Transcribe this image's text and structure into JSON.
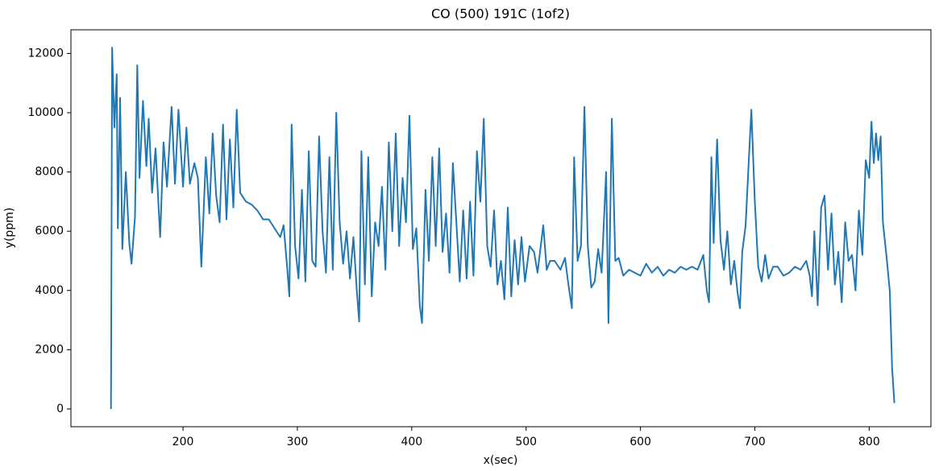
{
  "chart_data": {
    "type": "line",
    "title": "CO (500) 191C (1of2)",
    "xlabel": "x(sec)",
    "ylabel": "y(ppm)",
    "color": "#1f77b4",
    "xlim": [
      102,
      854
    ],
    "ylim": [
      -600,
      12800
    ],
    "xticks": [
      200,
      300,
      400,
      500,
      600,
      700,
      800
    ],
    "yticks": [
      0,
      2000,
      4000,
      6000,
      8000,
      10000,
      12000
    ],
    "grid": false,
    "x": [
      137,
      138,
      140,
      142,
      143,
      145,
      147,
      150,
      153,
      155,
      158,
      160,
      162,
      165,
      168,
      170,
      173,
      176,
      180,
      183,
      186,
      190,
      193,
      196,
      200,
      203,
      206,
      210,
      213,
      216,
      220,
      223,
      226,
      229,
      232,
      235,
      238,
      241,
      244,
      247,
      250,
      255,
      260,
      265,
      270,
      275,
      280,
      285,
      288,
      291,
      293,
      295,
      298,
      301,
      304,
      307,
      310,
      313,
      316,
      319,
      322,
      325,
      328,
      331,
      334,
      337,
      340,
      343,
      346,
      349,
      352,
      354,
      356,
      359,
      362,
      365,
      368,
      371,
      374,
      377,
      380,
      383,
      386,
      389,
      392,
      395,
      398,
      401,
      404,
      407,
      409,
      412,
      415,
      418,
      421,
      424,
      427,
      430,
      433,
      436,
      439,
      442,
      445,
      448,
      451,
      454,
      457,
      460,
      463,
      466,
      469,
      472,
      475,
      478,
      481,
      484,
      487,
      490,
      493,
      496,
      499,
      503,
      507,
      510,
      515,
      518,
      521,
      525,
      530,
      534,
      537,
      540,
      542,
      545,
      548,
      551,
      554,
      557,
      560,
      563,
      566,
      570,
      572,
      575,
      578,
      581,
      585,
      590,
      595,
      600,
      605,
      610,
      615,
      620,
      625,
      630,
      635,
      640,
      645,
      650,
      655,
      658,
      660,
      662,
      664,
      667,
      670,
      673,
      676,
      679,
      682,
      685,
      687,
      689,
      692,
      695,
      697,
      700,
      703,
      706,
      709,
      712,
      716,
      720,
      725,
      730,
      735,
      740,
      745,
      748,
      750,
      752,
      755,
      758,
      761,
      764,
      767,
      770,
      773,
      776,
      779,
      782,
      785,
      788,
      791,
      794,
      797,
      800,
      802,
      804,
      806,
      808,
      810,
      812,
      815,
      818,
      820,
      822
    ],
    "values": [
      0,
      12200,
      9500,
      11300,
      6100,
      10500,
      5400,
      8000,
      5600,
      4900,
      6500,
      11600,
      7800,
      10400,
      8200,
      9800,
      7300,
      8800,
      5800,
      9000,
      7500,
      10200,
      7600,
      10100,
      7500,
      9500,
      7600,
      8300,
      7800,
      4800,
      8500,
      6600,
      9300,
      7200,
      6300,
      9600,
      6400,
      9100,
      6800,
      10100,
      7300,
      7000,
      6900,
      6700,
      6400,
      6400,
      6100,
      5800,
      6200,
      4800,
      3800,
      9600,
      5500,
      4400,
      7400,
      4300,
      8700,
      5000,
      4800,
      9200,
      6000,
      4600,
      8500,
      4700,
      10000,
      6300,
      4900,
      6000,
      4400,
      5800,
      4000,
      2950,
      8700,
      4200,
      8500,
      3800,
      6300,
      5500,
      7500,
      4700,
      9000,
      6000,
      9300,
      5500,
      7800,
      6300,
      9900,
      5400,
      6100,
      3500,
      2900,
      7400,
      5000,
      8500,
      5500,
      8800,
      5300,
      6600,
      4600,
      8300,
      6300,
      4300,
      6700,
      4400,
      7000,
      4500,
      8700,
      7000,
      9800,
      5500,
      4800,
      6700,
      4200,
      5000,
      3700,
      6800,
      3800,
      5700,
      4200,
      5800,
      4300,
      5500,
      5300,
      4600,
      6200,
      4700,
      5000,
      5000,
      4700,
      5100,
      4200,
      3400,
      8500,
      5000,
      5500,
      10200,
      5500,
      4100,
      4300,
      5400,
      4600,
      8000,
      2900,
      9800,
      5000,
      5100,
      4500,
      4700,
      4600,
      4500,
      4900,
      4600,
      4800,
      4500,
      4700,
      4600,
      4800,
      4700,
      4800,
      4700,
      5200,
      4000,
      3600,
      8500,
      5600,
      9100,
      5700,
      4700,
      6000,
      4200,
      5000,
      3900,
      3400,
      5300,
      6200,
      8600,
      10100,
      7000,
      4800,
      4300,
      5200,
      4400,
      4800,
      4800,
      4500,
      4600,
      4800,
      4700,
      5000,
      4500,
      3800,
      6000,
      3500,
      6800,
      7200,
      4700,
      6600,
      4200,
      5300,
      3600,
      6300,
      5000,
      5200,
      4000,
      6700,
      5200,
      8400,
      7800,
      9700,
      8300,
      9300,
      8400,
      9200,
      6300,
      5200,
      4000,
      1400,
      200
    ]
  }
}
